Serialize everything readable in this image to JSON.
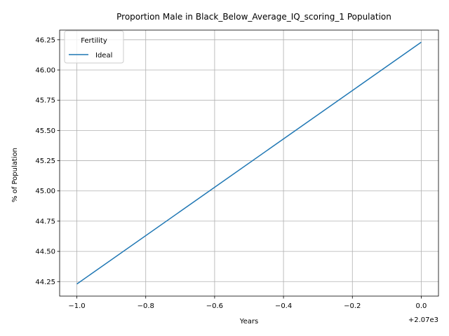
{
  "chart_data": {
    "type": "line",
    "title": "Proportion Male in Black_Below_Average_IQ_scoring_1 Population",
    "xlabel": "Years",
    "ylabel": "% of Population",
    "x_offset_label": "+2.07e3",
    "xlim": [
      -1.05,
      0.05
    ],
    "ylim": [
      44.13,
      46.33
    ],
    "xticks": [
      -1.0,
      -0.8,
      -0.6,
      -0.4,
      -0.2,
      0.0
    ],
    "xtick_labels": [
      "−1.0",
      "−0.8",
      "−0.6",
      "−0.4",
      "−0.2",
      "0.0"
    ],
    "yticks": [
      44.25,
      44.5,
      44.75,
      45.0,
      45.25,
      45.5,
      45.75,
      46.0,
      46.25
    ],
    "ytick_labels": [
      "44.25",
      "44.50",
      "44.75",
      "45.00",
      "45.25",
      "45.50",
      "45.75",
      "46.00",
      "46.25"
    ],
    "grid": true,
    "legend": {
      "title": "Fertility",
      "placement": "upper-left"
    },
    "series": [
      {
        "name": "Ideal",
        "color": "#1f77b4",
        "x": [
          -1.0,
          0.0
        ],
        "y": [
          44.23,
          46.23
        ]
      }
    ]
  }
}
